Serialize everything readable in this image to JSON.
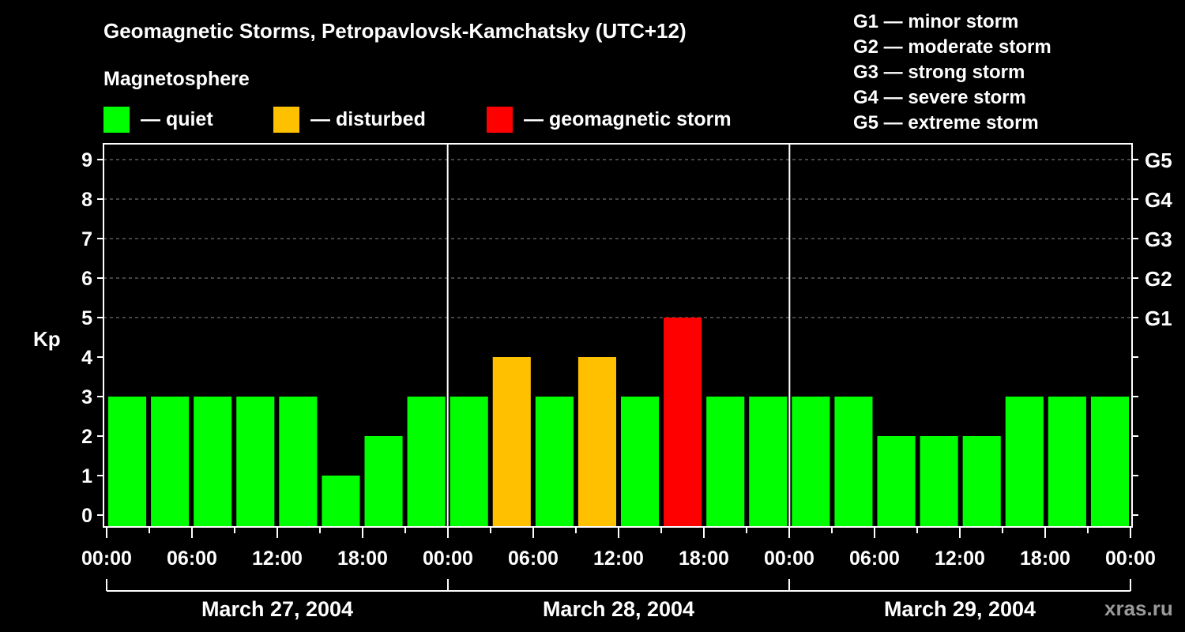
{
  "header": {
    "title": "Geomagnetic Storms, Petropavlovsk-Kamchatsky (UTC+12)",
    "subtitle": "Magnetosphere"
  },
  "legend": [
    {
      "label": "— quiet",
      "color": "#00ff00"
    },
    {
      "label": "— disturbed",
      "color": "#ffc000"
    },
    {
      "label": "— geomagnetic storm",
      "color": "#ff0000"
    }
  ],
  "storm_scale": [
    "G1 — minor storm",
    "G2 — moderate storm",
    "G3 — strong storm",
    "G4 — severe storm",
    "G5 — extreme storm"
  ],
  "watermark": "xras.ru",
  "chart_data": {
    "type": "bar",
    "title": "Geomagnetic Storms, Petropavlovsk-Kamchatsky (UTC+12)",
    "ylabel": "Kp",
    "xlabel": "",
    "ylim": [
      0,
      9
    ],
    "yticks": [
      0,
      1,
      2,
      3,
      4,
      5,
      6,
      7,
      8,
      9
    ],
    "right_axis_labels": [
      {
        "kp": 5,
        "label": "G1"
      },
      {
        "kp": 6,
        "label": "G2"
      },
      {
        "kp": 7,
        "label": "G3"
      },
      {
        "kp": 8,
        "label": "G4"
      },
      {
        "kp": 9,
        "label": "G5"
      }
    ],
    "grid": "dashed horizontal at Kp 5-9",
    "xtick_labels": [
      "00:00",
      "06:00",
      "12:00",
      "18:00",
      "00:00",
      "06:00",
      "12:00",
      "18:00",
      "00:00",
      "06:00",
      "12:00",
      "18:00",
      "00:00"
    ],
    "days": [
      "March 27, 2004",
      "March 28, 2004",
      "March 29, 2004"
    ],
    "categories": [
      "Mar 27 00-03",
      "Mar 27 03-06",
      "Mar 27 06-09",
      "Mar 27 09-12",
      "Mar 27 12-15",
      "Mar 27 15-18",
      "Mar 27 18-21",
      "Mar 27 21-24",
      "Mar 28 00-03",
      "Mar 28 03-06",
      "Mar 28 06-09",
      "Mar 28 09-12",
      "Mar 28 12-15",
      "Mar 28 15-18",
      "Mar 28 18-21",
      "Mar 28 21-24",
      "Mar 29 00-03",
      "Mar 29 03-06",
      "Mar 29 06-09",
      "Mar 29 09-12",
      "Mar 29 12-15",
      "Mar 29 15-18",
      "Mar 29 18-21",
      "Mar 29 21-24"
    ],
    "values": [
      3,
      3,
      3,
      3,
      3,
      1,
      2,
      3,
      3,
      4,
      3,
      4,
      3,
      5,
      3,
      3,
      3,
      3,
      2,
      2,
      2,
      3,
      3,
      3
    ],
    "levels": [
      "quiet",
      "quiet",
      "quiet",
      "quiet",
      "quiet",
      "quiet",
      "quiet",
      "quiet",
      "quiet",
      "disturbed",
      "quiet",
      "disturbed",
      "quiet",
      "storm",
      "quiet",
      "quiet",
      "quiet",
      "quiet",
      "quiet",
      "quiet",
      "quiet",
      "quiet",
      "quiet",
      "quiet"
    ],
    "colors": {
      "quiet": "#00ff00",
      "disturbed": "#ffc000",
      "storm": "#ff0000"
    }
  }
}
